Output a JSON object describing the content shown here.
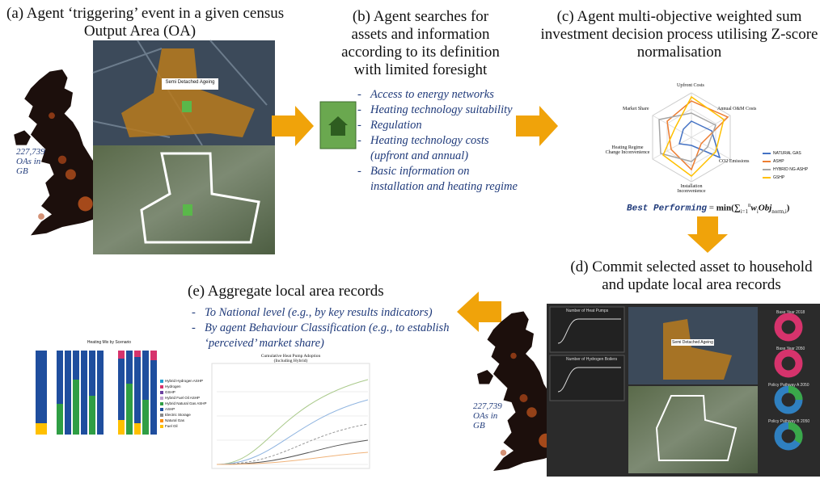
{
  "panel_a": {
    "title": [
      "(a) Agent ‘triggering’ event in a given census",
      "Output Area (OA)"
    ],
    "oa_count": [
      "227,739",
      "OAs in",
      "GB"
    ],
    "map_label": "Semi Detached Ageing"
  },
  "panel_b": {
    "title": [
      "(b) Agent searches for",
      "assets and information",
      "according to its definition",
      "with limited foresight"
    ],
    "bullets": [
      "Access to energy networks",
      "Heating technology suitability",
      "Regulation",
      "Heating technology costs (upfront and annual)",
      "Basic information on installation and heating regime"
    ]
  },
  "panel_c": {
    "title": [
      "(c) Agent multi-objective weighted sum",
      "investment decision process utilising Z-score",
      "normalisation"
    ],
    "radar_axes": [
      "Upfront Costs",
      "Annual O&M Costs",
      "CO2 Emissions",
      "Installation Inconvenience",
      "Heating Regime Change Inconvenience",
      "Market Share"
    ],
    "legend": [
      "NATURAL GAS",
      "ASHP",
      "HYBRID NG-ASHP",
      "GSHP"
    ],
    "formula": {
      "lhs": "Best Performing",
      "eq": "=",
      "min": "min(",
      "sum": "∑",
      "sum_lower": "i=1",
      "sum_upper": "n",
      "w": "w",
      "w_sub": "i",
      "obj": "Obj",
      "obj_sub": "norm,i",
      "close": ")"
    }
  },
  "panel_d": {
    "title": [
      "(d) Commit selected asset to household",
      "and update local area records"
    ],
    "oa_count": [
      "227,739",
      "OAs in",
      "GB"
    ],
    "charts": [
      "Number of Heat Pumps",
      "Number of Hydrogen Boilers"
    ],
    "map_label": "Semi Detached Ageing",
    "donuts": [
      "Base Year 2018",
      "Base Year 2050",
      "Policy Pathway A 2050",
      "Policy Pathway B 2050"
    ]
  },
  "panel_e": {
    "title": "(e) Aggregate local area records",
    "bullets": [
      "To National level (e.g., by key results indicators)",
      "By agent Behaviour Classification (e.g., to establish ‘perceived’ market share)"
    ],
    "bar_chart": {
      "title": "Heating Mix by Scenario",
      "legend": [
        "Hybrid Hydrogen ASHP",
        "Hydrogen",
        "GSHP",
        "Hybrid Fuel Oil ASHP",
        "Hybrid Natural Gas ASHP",
        "ASHP",
        "Electric Storage",
        "Natural Gas",
        "Fuel Oil"
      ]
    },
    "line_chart": {
      "title": [
        "Cumulative Heat Pump Adoption",
        "(Including Hybrid)"
      ]
    }
  }
}
